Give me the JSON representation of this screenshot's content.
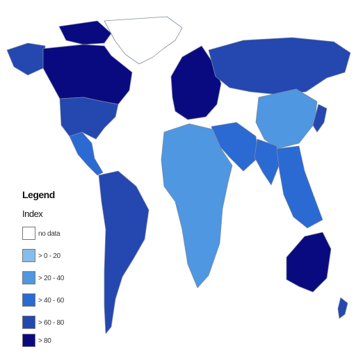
{
  "legend": {
    "title": "Legend",
    "subtitle": "Index",
    "items": [
      {
        "label": "no data",
        "color": "#ffffff"
      },
      {
        "label": "> 0 - 20",
        "color": "#86bdea"
      },
      {
        "label": "> 20 - 40",
        "color": "#4f97e0"
      },
      {
        "label": "> 40 - 60",
        "color": "#2a6ad2"
      },
      {
        "label": "> 60 - 80",
        "color": "#2447b0"
      },
      {
        "label": "> 80",
        "color": "#0a0a80"
      }
    ]
  },
  "regions": [
    {
      "name": "Greenland",
      "level": "no data"
    },
    {
      "name": "Canada",
      "level": "> 80"
    },
    {
      "name": "Alaska",
      "level": "> 60 - 80"
    },
    {
      "name": "United States",
      "level": "> 60 - 80"
    },
    {
      "name": "Mexico",
      "level": "> 40 - 60"
    },
    {
      "name": "South America",
      "level": "> 60 - 80"
    },
    {
      "name": "Europe",
      "level": "> 80"
    },
    {
      "name": "Russia",
      "level": "> 60 - 80"
    },
    {
      "name": "Middle East",
      "level": "> 40 - 60"
    },
    {
      "name": "Africa",
      "level": "> 20 - 40"
    },
    {
      "name": "China",
      "level": "> 20 - 40"
    },
    {
      "name": "India",
      "level": "> 40 - 60"
    },
    {
      "name": "Southeast Asia",
      "level": "> 40 - 60"
    },
    {
      "name": "Australia",
      "level": "> 80"
    },
    {
      "name": "New Zealand",
      "level": "> 60 - 80"
    }
  ]
}
